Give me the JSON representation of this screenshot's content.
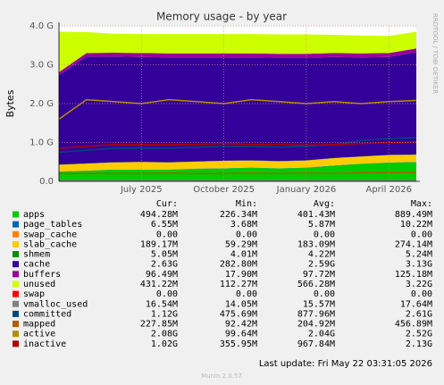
{
  "chart_data": {
    "type": "area",
    "title": "Memory usage - by year",
    "y_label": "Bytes",
    "side_text": "RRDTOOL / TOBI OETIKER",
    "x": [
      "2025-04",
      "2025-05",
      "2025-06",
      "2025-07",
      "2025-08",
      "2025-09",
      "2025-10",
      "2025-11",
      "2025-12",
      "2026-01",
      "2026-02",
      "2026-03",
      "2026-04",
      "2026-05"
    ],
    "xlim": [
      "2025-04",
      "2026-05"
    ],
    "xticks": [
      {
        "value": "2025-07",
        "label": "July 2025"
      },
      {
        "value": "2025-10",
        "label": "October 2025"
      },
      {
        "value": "2026-01",
        "label": "January 2026"
      },
      {
        "value": "2026-04",
        "label": "April 2026"
      }
    ],
    "ylim": [
      0,
      4
    ],
    "yticks": [
      {
        "value": 0,
        "label": "0.0"
      },
      {
        "value": 1,
        "label": "1.0 G"
      },
      {
        "value": 2,
        "label": "2.0 G"
      },
      {
        "value": 3,
        "label": "3.0 G"
      },
      {
        "value": 4,
        "label": "4.0 G"
      }
    ],
    "grid": true,
    "legend_headers": [
      "Cur:",
      "Min:",
      "Avg:",
      "Max:"
    ],
    "series": [
      {
        "name": "apps",
        "color": "#00cc00",
        "style": "area",
        "values": [
          0.25,
          0.27,
          0.3,
          0.3,
          0.3,
          0.32,
          0.33,
          0.35,
          0.33,
          0.35,
          0.4,
          0.45,
          0.48,
          0.49
        ],
        "cur": "494.28M",
        "min": "226.34M",
        "avg": "401.43M",
        "max": "889.49M"
      },
      {
        "name": "page_tables",
        "color": "#0066b3",
        "style": "area",
        "values": [
          0.006,
          0.006,
          0.006,
          0.006,
          0.006,
          0.006,
          0.006,
          0.006,
          0.006,
          0.006,
          0.006,
          0.006,
          0.006,
          0.006
        ],
        "cur": "6.55M",
        "min": "3.68M",
        "avg": "5.87M",
        "max": "10.22M"
      },
      {
        "name": "swap_cache",
        "color": "#ff8000",
        "style": "area",
        "values": [
          0,
          0,
          0,
          0,
          0,
          0,
          0,
          0,
          0,
          0,
          0,
          0,
          0,
          0
        ],
        "cur": "0.00",
        "min": "0.00",
        "avg": "0.00",
        "max": "0.00"
      },
      {
        "name": "slab_cache",
        "color": "#ffcc00",
        "style": "area",
        "values": [
          0.17,
          0.18,
          0.18,
          0.19,
          0.18,
          0.18,
          0.19,
          0.18,
          0.18,
          0.18,
          0.19,
          0.18,
          0.19,
          0.19
        ],
        "cur": "189.17M",
        "min": "59.29M",
        "avg": "183.09M",
        "max": "274.14M"
      },
      {
        "name": "shmem",
        "color": "#008f00",
        "style": "area",
        "values": [
          0.005,
          0.005,
          0.005,
          0.005,
          0.005,
          0.005,
          0.005,
          0.005,
          0.005,
          0.005,
          0.005,
          0.005,
          0.005,
          0.005
        ],
        "cur": "5.05M",
        "min": "4.01M",
        "avg": "4.22M",
        "max": "5.24M"
      },
      {
        "name": "cache",
        "color": "#330099",
        "style": "area",
        "values": [
          2.3,
          2.75,
          2.72,
          2.7,
          2.7,
          2.68,
          2.66,
          2.65,
          2.66,
          2.64,
          2.6,
          2.55,
          2.52,
          2.63
        ],
        "cur": "2.63G",
        "min": "282.80M",
        "avg": "2.59G",
        "max": "3.13G"
      },
      {
        "name": "buffers",
        "color": "#990099",
        "style": "area",
        "values": [
          0.08,
          0.09,
          0.1,
          0.1,
          0.1,
          0.1,
          0.1,
          0.1,
          0.1,
          0.1,
          0.1,
          0.1,
          0.1,
          0.1
        ],
        "cur": "96.49M",
        "min": "17.90M",
        "avg": "97.72M",
        "max": "125.18M"
      },
      {
        "name": "unused",
        "color": "#ccff00",
        "style": "area",
        "values": [
          1.04,
          0.54,
          0.49,
          0.49,
          0.5,
          0.5,
          0.5,
          0.5,
          0.5,
          0.5,
          0.47,
          0.46,
          0.44,
          0.43
        ],
        "cur": "431.22M",
        "min": "112.27M",
        "avg": "566.28M",
        "max": "3.22G"
      },
      {
        "name": "swap",
        "color": "#ff0000",
        "style": "area",
        "values": [
          0,
          0,
          0,
          0,
          0,
          0,
          0,
          0,
          0,
          0,
          0,
          0,
          0,
          0
        ],
        "cur": "0.00",
        "min": "0.00",
        "avg": "0.00",
        "max": "0.00"
      },
      {
        "name": "vmalloc_used",
        "color": "#808080",
        "style": "line",
        "values": [
          0.016,
          0.016,
          0.016,
          0.016,
          0.016,
          0.016,
          0.016,
          0.016,
          0.016,
          0.016,
          0.016,
          0.016,
          0.016,
          0.017
        ],
        "cur": "16.54M",
        "min": "14.05M",
        "avg": "15.57M",
        "max": "17.64M"
      },
      {
        "name": "committed",
        "color": "#00487d",
        "style": "line",
        "values": [
          0.75,
          0.8,
          0.85,
          0.85,
          0.85,
          0.88,
          0.9,
          0.9,
          0.88,
          0.9,
          0.95,
          1.05,
          1.1,
          1.12
        ],
        "cur": "1.12G",
        "min": "475.69M",
        "avg": "877.96M",
        "max": "2.61G"
      },
      {
        "name": "mapped",
        "color": "#b35a00",
        "style": "line",
        "values": [
          0.2,
          0.2,
          0.2,
          0.2,
          0.21,
          0.2,
          0.2,
          0.21,
          0.2,
          0.21,
          0.2,
          0.22,
          0.22,
          0.23
        ],
        "cur": "227.85M",
        "min": "92.42M",
        "avg": "204.92M",
        "max": "456.89M"
      },
      {
        "name": "active",
        "color": "#b38f00",
        "style": "line",
        "values": [
          1.6,
          2.1,
          2.05,
          2.0,
          2.1,
          2.05,
          2.0,
          2.1,
          2.05,
          2.0,
          2.05,
          2.0,
          2.05,
          2.08
        ],
        "cur": "2.08G",
        "min": "99.64M",
        "avg": "2.04G",
        "max": "2.52G"
      },
      {
        "name": "inactive",
        "color": "#b30000",
        "style": "line",
        "values": [
          0.85,
          0.9,
          0.95,
          0.95,
          0.95,
          0.95,
          0.97,
          0.95,
          0.95,
          0.93,
          0.95,
          0.97,
          1.0,
          1.02
        ],
        "cur": "1.02G",
        "min": "355.95M",
        "avg": "967.84M",
        "max": "2.13G"
      }
    ],
    "last_update": "Last update: Fri May 22 03:31:05 2026",
    "footer": "Munin 2.0.57"
  }
}
